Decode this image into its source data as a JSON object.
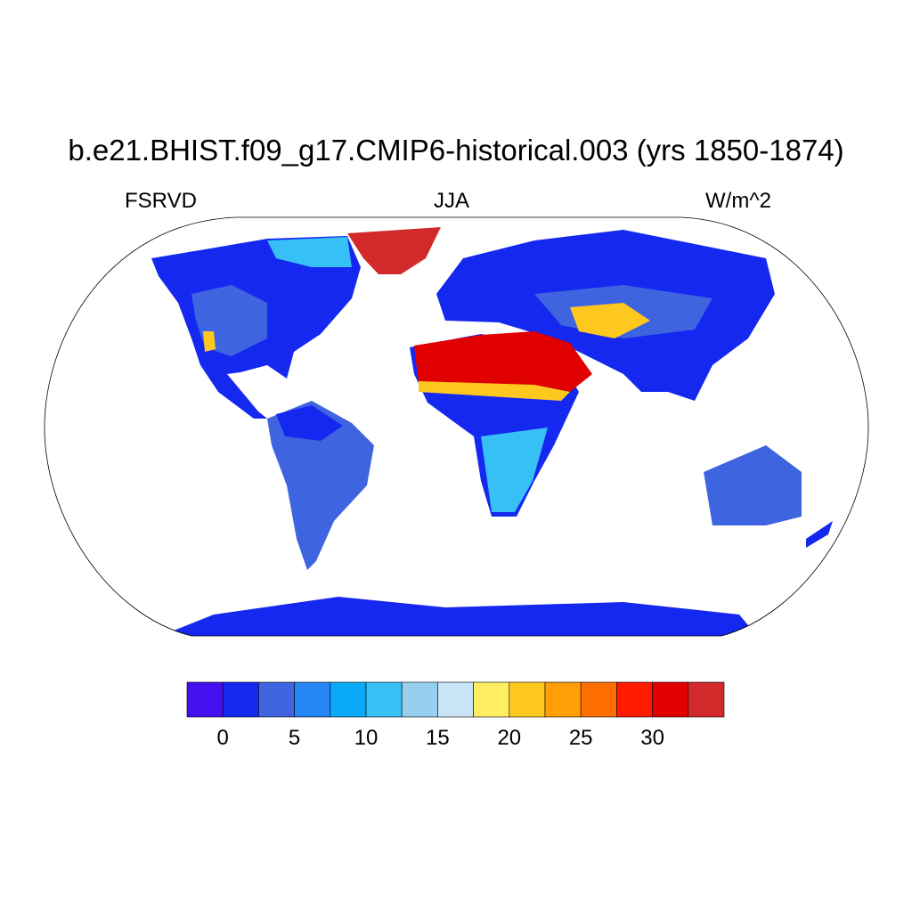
{
  "title": "b.e21.BHIST.f09_g17.CMIP6-historical.003 (yrs 1850-1874)",
  "left_label": "FSRVD",
  "center_label": "JJA",
  "right_label": "W/m^2",
  "projection": "Robinson",
  "colorbar": {
    "levels": [
      0,
      2.5,
      5,
      7.5,
      10,
      12.5,
      15,
      17.5,
      20,
      22.5,
      25,
      27.5,
      30,
      32.5
    ],
    "tick_labels": [
      "0",
      "5",
      "10",
      "15",
      "20",
      "25",
      "30"
    ],
    "colors": [
      "#4410F0",
      "#1428F0",
      "#3F64E0",
      "#2686F6",
      "#0AAAF8",
      "#36C0F6",
      "#96D0EE",
      "#C8E4F6",
      "#FFEE62",
      "#FFC81E",
      "#FF9E06",
      "#FF6E00",
      "#FF1A00",
      "#E00000",
      "#D22A2A"
    ]
  }
}
